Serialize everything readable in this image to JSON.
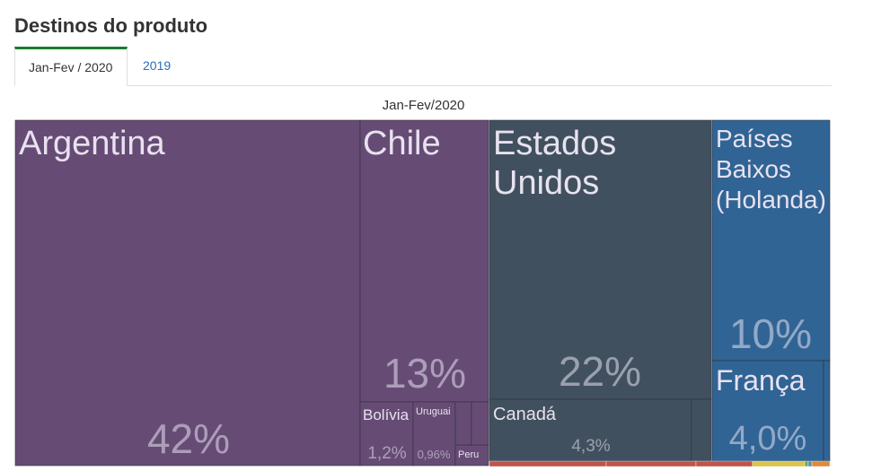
{
  "page": {
    "title": "Destinos do produto",
    "tabs": [
      {
        "label": "Jan-Fev / 2020",
        "active": true
      },
      {
        "label": "2019",
        "active": false
      }
    ]
  },
  "chart_data": {
    "type": "treemap",
    "title": "Jan-Fev/2020",
    "items": [
      {
        "name": "Argentina",
        "value": 42,
        "label": "42%",
        "color": "#664c75"
      },
      {
        "name": "Chile",
        "value": 13,
        "label": "13%",
        "color": "#664c75"
      },
      {
        "name": "Bolívia",
        "value": 1.2,
        "label": "1,2%",
        "color": "#664c75"
      },
      {
        "name": "Uruguai",
        "value": 0.96,
        "label": "0,96%",
        "color": "#664c75"
      },
      {
        "name": "Peru",
        "value": null,
        "label": "",
        "color": "#664c75"
      },
      {
        "name": "Estados Unidos",
        "value": 22,
        "label": "22%",
        "color": "#41505e"
      },
      {
        "name": "Canadá",
        "value": 4.3,
        "label": "4,3%",
        "color": "#41505e"
      },
      {
        "name": "Países Baixos (Holanda)",
        "value": 10,
        "label": "10%",
        "color": "#306495"
      },
      {
        "name": "França",
        "value": 4.0,
        "label": "4,0%",
        "color": "#306495"
      }
    ],
    "colors": {
      "south_america": "#664c75",
      "north_america": "#41505e",
      "europe": "#306495",
      "bottom_strip": [
        "#c0544a",
        "#d9c44a",
        "#7fa84a",
        "#4a90c0",
        "#e08a3a"
      ]
    }
  }
}
